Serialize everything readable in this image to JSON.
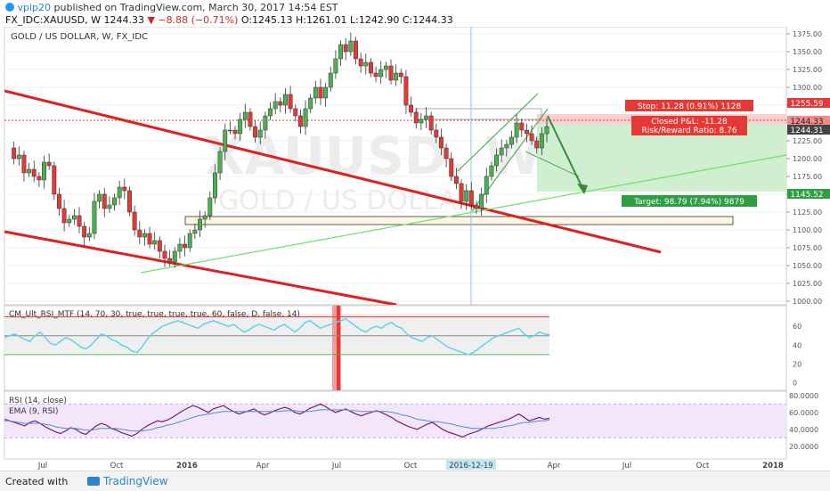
{
  "header": {
    "author": "vpip20",
    "published_text": "published on TradingView.com, March 30, 2017 14:54 EST",
    "symbol": "FX_IDC:XAUUSD, W",
    "last": "1244.33",
    "change": "▼ −8.88 (−0.71%)",
    "open": "O:1245.13",
    "high": "H:1261.01",
    "low": "L:1242.90",
    "close": "C:1244.33"
  },
  "main_pane": {
    "title": "GOLD / US DOLLAR, W, FX_IDC",
    "watermark_symbol": "XAUUSD, W",
    "watermark_name": "GOLD / US DOLLAR",
    "price_labels": {
      "stop_level": "1255.59",
      "last": "1244.33",
      "last_secondary": "1244.31",
      "target_level": "1145.52"
    },
    "position": {
      "stop": "Stop: 11.28 (0.91%) 1128",
      "closed_pnl": "Closed P&L: -11.28",
      "risk_reward": "Risk/Reward Ratio: 8.76",
      "target": "Target: 98.79 (7.94%) 9879"
    }
  },
  "ult_rsi_pane": {
    "title": "CM_Ult_RSI_MTF (14, 70, 30, true, true, true, true, 60, false, D, false, 14)"
  },
  "rsi_pane": {
    "title": "RSI (14, close)",
    "ema_title": "EMA (9, RSI)"
  },
  "time_axis": {
    "cursor_label": "2016-12-19"
  },
  "footer": {
    "created_with": "Created with",
    "brand": "TradingView"
  },
  "colors": {
    "up": "#4caf50",
    "down": "#e53935",
    "trendline": "#e02020",
    "support": "#6ee06e",
    "cursor": "#7ec8e3",
    "target_zone": "#c8ecc8",
    "stop_zone": "#f8c8c8"
  },
  "chart_data": [
    {
      "type": "candlestick",
      "title": "GOLD / US DOLLAR, W, FX_IDC",
      "x_ticks": [
        "Jul",
        "Oct",
        "2016",
        "Apr",
        "Jul",
        "Oct",
        "2016-12-19",
        "Apr",
        "Jul",
        "Oct",
        "2018"
      ],
      "y_ticks": [
        1000,
        1025,
        1050,
        1075,
        1100,
        1125,
        1150,
        1175,
        1200,
        1225,
        1250,
        1275,
        1300,
        1325,
        1350,
        1375
      ],
      "ylim": [
        995,
        1385
      ],
      "close_path": [
        1215,
        1200,
        1205,
        1180,
        1185,
        1175,
        1170,
        1195,
        1190,
        1150,
        1130,
        1110,
        1115,
        1120,
        1105,
        1090,
        1095,
        1140,
        1150,
        1130,
        1135,
        1145,
        1160,
        1155,
        1125,
        1100,
        1090,
        1095,
        1080,
        1085,
        1070,
        1060,
        1055,
        1070,
        1080,
        1075,
        1095,
        1100,
        1115,
        1120,
        1145,
        1180,
        1210,
        1240,
        1240,
        1235,
        1255,
        1265,
        1245,
        1230,
        1240,
        1260,
        1270,
        1280,
        1275,
        1290,
        1270,
        1260,
        1245,
        1270,
        1285,
        1300,
        1285,
        1300,
        1320,
        1340,
        1360,
        1350,
        1365,
        1340,
        1330,
        1335,
        1320,
        1315,
        1325,
        1330,
        1310,
        1320,
        1315,
        1275,
        1265,
        1250,
        1255,
        1260,
        1240,
        1230,
        1215,
        1200,
        1175,
        1165,
        1140,
        1155,
        1135,
        1130,
        1150,
        1175,
        1190,
        1205,
        1215,
        1220,
        1230,
        1250,
        1240,
        1235,
        1225,
        1215,
        1235,
        1245
      ],
      "annotations": {
        "target_level": 1145.52,
        "stop_level": 1255.59,
        "entry_level": 1244.33,
        "demand_zone": [
          1110,
          1125
        ]
      }
    },
    {
      "type": "line",
      "title": "CM_Ult_RSI_MTF (14, 70, 30, true, true, true, true, 60, false, D, false, 14)",
      "y_ticks": [
        0,
        20,
        40,
        60
      ],
      "ylim": [
        -8,
        82
      ],
      "levels": [
        70,
        50,
        30
      ],
      "values": [
        48,
        50,
        52,
        49,
        46,
        44,
        50,
        54,
        48,
        42,
        40,
        44,
        48,
        46,
        42,
        38,
        36,
        40,
        46,
        52,
        50,
        46,
        44,
        40,
        38,
        34,
        32,
        38,
        46,
        52,
        56,
        60,
        62,
        64,
        66,
        64,
        62,
        60,
        58,
        62,
        64,
        66,
        64,
        62,
        60,
        62,
        58,
        54,
        56,
        60,
        62,
        60,
        58,
        56,
        60,
        62,
        58,
        54,
        58,
        64,
        66,
        62,
        58,
        60,
        62,
        64,
        66,
        68,
        64,
        60,
        56,
        54,
        58,
        60,
        58,
        62,
        64,
        60,
        58,
        52,
        48,
        46,
        44,
        48,
        50,
        46,
        42,
        38,
        36,
        34,
        32,
        30,
        32,
        36,
        40,
        44,
        48,
        50,
        52,
        54,
        56,
        58,
        52,
        48,
        50,
        54,
        52,
        51
      ]
    },
    {
      "type": "line",
      "title": "RSI (14, close)",
      "y_ticks": [
        "20.0000",
        "40.0000",
        "60.0000",
        "80.0000"
      ],
      "ylim": [
        5,
        85
      ],
      "levels": [
        70,
        30
      ],
      "series": [
        {
          "name": "RSI (14, close)",
          "values": [
            52,
            50,
            48,
            46,
            44,
            48,
            50,
            47,
            43,
            40,
            37,
            35,
            38,
            42,
            40,
            36,
            34,
            39,
            44,
            47,
            45,
            41,
            39,
            36,
            34,
            32,
            35,
            40,
            44,
            47,
            50,
            49,
            51,
            54,
            58,
            62,
            65,
            68,
            66,
            63,
            60,
            64,
            66,
            68,
            64,
            61,
            58,
            60,
            62,
            64,
            60,
            57,
            59,
            62,
            64,
            66,
            64,
            60,
            58,
            61,
            65,
            67,
            70,
            67,
            63,
            60,
            62,
            64,
            61,
            58,
            56,
            58,
            60,
            62,
            60,
            57,
            54,
            50,
            47,
            44,
            42,
            40,
            43,
            46,
            48,
            44,
            40,
            37,
            35,
            33,
            31,
            34,
            36,
            38,
            41,
            44,
            46,
            48,
            50,
            52,
            55,
            58,
            54,
            50,
            52,
            54,
            52,
            53
          ]
        },
        {
          "name": "EMA (9, RSI)",
          "values": [
            50,
            50,
            49,
            48,
            47,
            47,
            47,
            47,
            46,
            45,
            43,
            42,
            41,
            41,
            41,
            40,
            39,
            39,
            40,
            41,
            41,
            41,
            41,
            40,
            39,
            38,
            38,
            38,
            39,
            40,
            42,
            43,
            45,
            46,
            48,
            50,
            52,
            54,
            56,
            57,
            58,
            59,
            60,
            61,
            61,
            61,
            61,
            61,
            61,
            61,
            61,
            61,
            61,
            61,
            61,
            62,
            62,
            62,
            61,
            61,
            61,
            62,
            63,
            63,
            63,
            63,
            63,
            63,
            62,
            62,
            61,
            61,
            61,
            61,
            61,
            61,
            60,
            59,
            57,
            56,
            54,
            52,
            51,
            50,
            49,
            49,
            48,
            47,
            46,
            44,
            43,
            42,
            41,
            41,
            41,
            41,
            41,
            42,
            43,
            44,
            45,
            47,
            48,
            48,
            49,
            50,
            50,
            51
          ]
        }
      ]
    }
  ]
}
